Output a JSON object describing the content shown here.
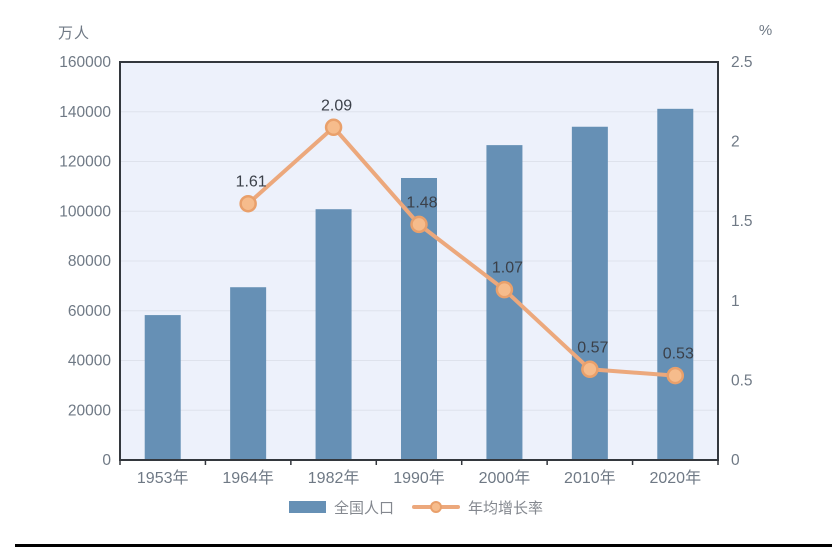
{
  "chart_data": {
    "type": "bar+line",
    "title": "",
    "categories": [
      "1953年",
      "1964年",
      "1982年",
      "1990年",
      "2000年",
      "2010年",
      "2020年"
    ],
    "left_axis": {
      "title": "万人",
      "min": 0,
      "max": 160000,
      "step": 20000,
      "tick_labels": [
        "0",
        "20000",
        "40000",
        "60000",
        "80000",
        "100000",
        "120000",
        "140000",
        "160000"
      ]
    },
    "right_axis": {
      "title": "%",
      "min": 0,
      "max": 2.5,
      "step": 0.5,
      "tick_labels": [
        "0",
        "0.5",
        "1",
        "1.5",
        "2",
        "2.5"
      ]
    },
    "series": [
      {
        "name": "全国人口",
        "type": "bar",
        "color": "#6690B5",
        "values": [
          58260,
          69458,
          100818,
          113368,
          126583,
          133972,
          141178
        ]
      },
      {
        "name": "年均增长率",
        "type": "line",
        "color": "#ECA87C",
        "marker_fill": "#F6BC8C",
        "marker_stroke": "#E9A06B",
        "values": [
          null,
          1.61,
          2.09,
          1.48,
          1.07,
          0.57,
          0.53
        ],
        "point_labels": [
          "",
          "1.61",
          "2.09",
          "1.48",
          "1.07",
          "0.57",
          "0.53"
        ]
      }
    ],
    "legend_position": "bottom",
    "grid": true
  },
  "palette": {
    "page_bg": "#FFFFFF",
    "plot_bg": "#EDF1FB",
    "gridline": "#DEE2EC",
    "frame": "#33373D",
    "axis_text": "#6F7985",
    "data_label_text": "#3B4049",
    "legend_text": "#84888F",
    "bottom_rule": "#000000"
  }
}
